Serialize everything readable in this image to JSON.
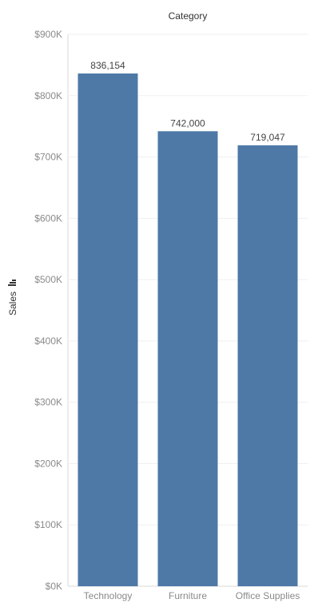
{
  "chart_data": {
    "type": "bar",
    "title": "",
    "column_header": "Category",
    "xlabel": "",
    "ylabel": "Sales",
    "categories": [
      "Technology",
      "Furniture",
      "Office Supplies"
    ],
    "values": [
      836154,
      742000,
      719047
    ],
    "data_labels": [
      "836,154",
      "742,000",
      "719,047"
    ],
    "ylim": [
      0,
      900000
    ],
    "yticks": [
      0,
      100000,
      200000,
      300000,
      400000,
      500000,
      600000,
      700000,
      800000,
      900000
    ],
    "ytick_labels": [
      "$0K",
      "$100K",
      "$200K",
      "$300K",
      "$400K",
      "$500K",
      "$600K",
      "$700K",
      "$800K",
      "$900K"
    ],
    "grid": true,
    "legend": "none",
    "colors": {
      "bar": "#4e79a7",
      "grid": "#efefef",
      "axis": "#d9d9d9"
    },
    "sort_icon": "sort-descending-icon"
  }
}
